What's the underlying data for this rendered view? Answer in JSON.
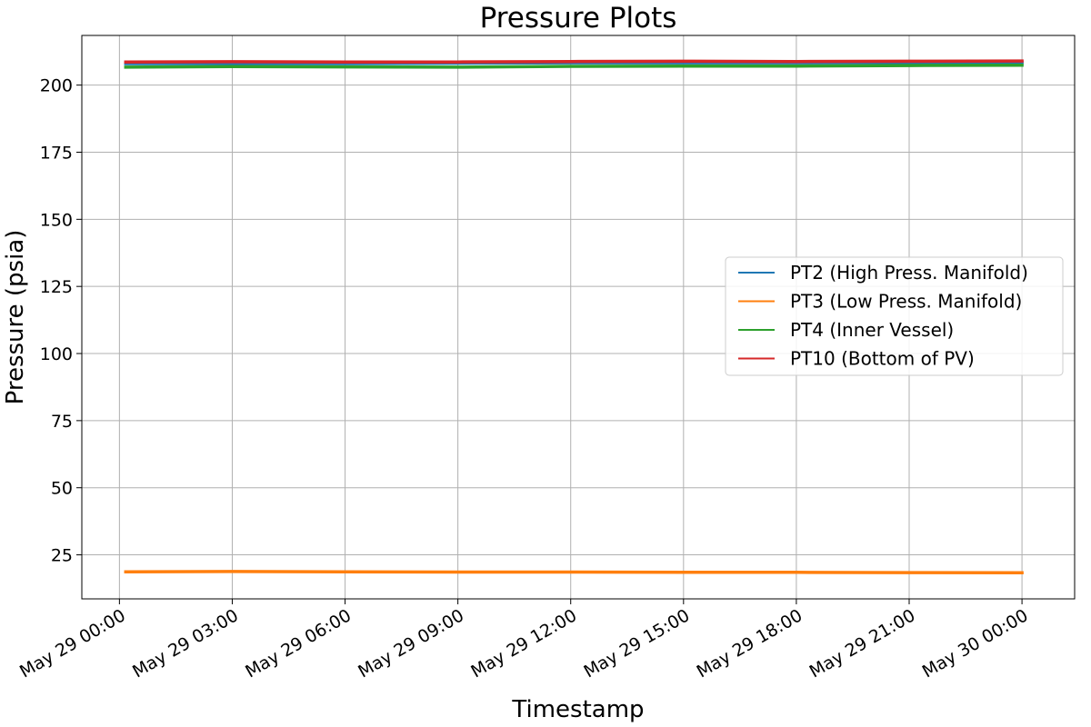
{
  "chart_data": {
    "type": "line",
    "title": "Pressure Plots",
    "xlabel": "Timestamp",
    "ylabel": "Pressure (psia)",
    "x_ticks": [
      "May 29 00:00",
      "May 29 03:00",
      "May 29 06:00",
      "May 29 09:00",
      "May 29 12:00",
      "May 29 15:00",
      "May 29 18:00",
      "May 29 21:00",
      "May 30 00:00"
    ],
    "x_range": [
      "2024-05-28 23:00",
      "2024-05-30 01:24"
    ],
    "y_ticks": [
      25,
      50,
      75,
      100,
      125,
      150,
      175,
      200
    ],
    "ylim": [
      8.6,
      218.5
    ],
    "grid": true,
    "legend_position": "center-right",
    "series": [
      {
        "name": "PT2 (High Press. Manifold)",
        "color": "#1f77b4",
        "x": [
          "2024-05-29 00:10",
          "2024-05-29 06:00",
          "2024-05-29 12:00",
          "2024-05-29 18:00",
          "2024-05-30 00:00"
        ],
        "values": [
          208.0,
          208.0,
          208.3,
          208.3,
          208.4
        ]
      },
      {
        "name": "PT3 (Low Press. Manifold)",
        "color": "#ff7f0e",
        "x": [
          "2024-05-29 00:10",
          "2024-05-29 03:00",
          "2024-05-29 06:00",
          "2024-05-29 09:00",
          "2024-05-29 12:00",
          "2024-05-29 15:00",
          "2024-05-29 18:00",
          "2024-05-29 21:00",
          "2024-05-30 00:00"
        ],
        "values": [
          18.7,
          18.8,
          18.7,
          18.6,
          18.6,
          18.5,
          18.5,
          18.4,
          18.3
        ]
      },
      {
        "name": "PT4 (Inner Vessel)",
        "color": "#2ca02c",
        "x": [
          "2024-05-29 00:10",
          "2024-05-29 03:00",
          "2024-05-29 06:00",
          "2024-05-29 09:00",
          "2024-05-29 12:00",
          "2024-05-29 15:00",
          "2024-05-29 18:00",
          "2024-05-29 21:00",
          "2024-05-30 00:00"
        ],
        "values": [
          206.7,
          206.9,
          206.8,
          206.7,
          207.0,
          207.1,
          207.1,
          207.3,
          207.4
        ]
      },
      {
        "name": "PT10 (Bottom of PV)",
        "color": "#d62728",
        "x": [
          "2024-05-29 00:10",
          "2024-05-29 03:00",
          "2024-05-29 06:00",
          "2024-05-29 09:00",
          "2024-05-29 12:00",
          "2024-05-29 15:00",
          "2024-05-29 18:00",
          "2024-05-29 21:00",
          "2024-05-30 00:00"
        ],
        "values": [
          208.6,
          208.7,
          208.6,
          208.6,
          208.8,
          208.9,
          208.8,
          208.9,
          209.0
        ]
      }
    ]
  }
}
